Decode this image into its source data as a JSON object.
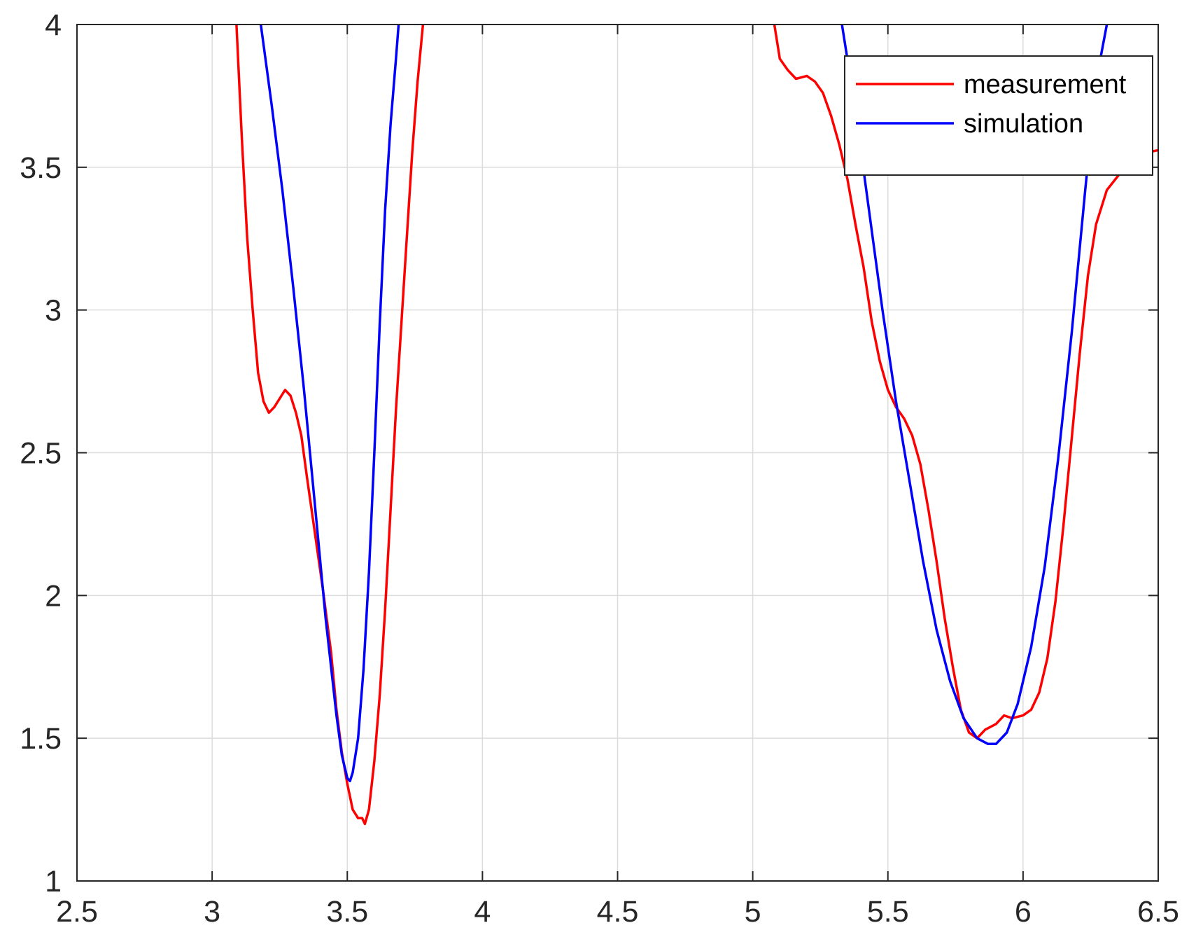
{
  "chart_data": {
    "type": "line",
    "title": "",
    "xlabel": "",
    "ylabel": "",
    "xlim": [
      2.5,
      6.5
    ],
    "ylim": [
      1,
      4
    ],
    "xticks": [
      2.5,
      3,
      3.5,
      4,
      4.5,
      5,
      5.5,
      6,
      6.5
    ],
    "xtick_labels": [
      "2.5",
      "3",
      "3.5",
      "4",
      "4.5",
      "5",
      "5.5",
      "6",
      "6.5"
    ],
    "yticks": [
      1,
      1.5,
      2,
      2.5,
      3,
      3.5,
      4
    ],
    "ytick_labels": [
      "1",
      "1.5",
      "2",
      "2.5",
      "3",
      "3.5",
      "4"
    ],
    "grid": true,
    "legend_position": "top-right",
    "series": [
      {
        "name": "measurement",
        "color": "#ff0000",
        "segments": [
          [
            [
              3.09,
              4.0
            ],
            [
              3.11,
              3.6
            ],
            [
              3.13,
              3.25
            ],
            [
              3.15,
              3.0
            ],
            [
              3.17,
              2.78
            ],
            [
              3.19,
              2.68
            ],
            [
              3.21,
              2.64
            ],
            [
              3.23,
              2.66
            ],
            [
              3.25,
              2.69
            ],
            [
              3.27,
              2.72
            ],
            [
              3.29,
              2.7
            ],
            [
              3.31,
              2.64
            ],
            [
              3.33,
              2.56
            ],
            [
              3.35,
              2.42
            ],
            [
              3.38,
              2.22
            ],
            [
              3.41,
              2.02
            ],
            [
              3.44,
              1.8
            ],
            [
              3.46,
              1.6
            ],
            [
              3.48,
              1.45
            ],
            [
              3.5,
              1.34
            ],
            [
              3.52,
              1.25
            ],
            [
              3.54,
              1.22
            ],
            [
              3.555,
              1.22
            ],
            [
              3.565,
              1.2
            ],
            [
              3.58,
              1.25
            ],
            [
              3.6,
              1.42
            ],
            [
              3.62,
              1.65
            ],
            [
              3.64,
              1.95
            ],
            [
              3.66,
              2.3
            ],
            [
              3.68,
              2.65
            ],
            [
              3.7,
              2.95
            ],
            [
              3.72,
              3.25
            ],
            [
              3.74,
              3.55
            ],
            [
              3.76,
              3.8
            ],
            [
              3.78,
              4.0
            ]
          ],
          [
            [
              5.08,
              4.0
            ],
            [
              5.1,
              3.88
            ],
            [
              5.13,
              3.84
            ],
            [
              5.16,
              3.81
            ],
            [
              5.2,
              3.82
            ],
            [
              5.23,
              3.8
            ],
            [
              5.26,
              3.76
            ],
            [
              5.29,
              3.68
            ],
            [
              5.32,
              3.58
            ],
            [
              5.35,
              3.46
            ],
            [
              5.38,
              3.3
            ],
            [
              5.41,
              3.15
            ],
            [
              5.44,
              2.96
            ],
            [
              5.47,
              2.82
            ],
            [
              5.5,
              2.72
            ],
            [
              5.53,
              2.66
            ],
            [
              5.56,
              2.62
            ],
            [
              5.59,
              2.56
            ],
            [
              5.62,
              2.46
            ],
            [
              5.65,
              2.3
            ],
            [
              5.68,
              2.12
            ],
            [
              5.71,
              1.92
            ],
            [
              5.74,
              1.75
            ],
            [
              5.77,
              1.6
            ],
            [
              5.8,
              1.52
            ],
            [
              5.83,
              1.5
            ],
            [
              5.86,
              1.53
            ],
            [
              5.9,
              1.55
            ],
            [
              5.93,
              1.58
            ],
            [
              5.96,
              1.57
            ],
            [
              6.0,
              1.58
            ],
            [
              6.03,
              1.6
            ],
            [
              6.06,
              1.66
            ],
            [
              6.09,
              1.78
            ],
            [
              6.12,
              1.98
            ],
            [
              6.15,
              2.25
            ],
            [
              6.18,
              2.55
            ],
            [
              6.21,
              2.85
            ],
            [
              6.24,
              3.12
            ],
            [
              6.27,
              3.3
            ],
            [
              6.31,
              3.42
            ],
            [
              6.36,
              3.48
            ],
            [
              6.4,
              3.52
            ],
            [
              6.45,
              3.55
            ],
            [
              6.5,
              3.56
            ]
          ]
        ]
      },
      {
        "name": "simulation",
        "color": "#0000ff",
        "segments": [
          [
            [
              3.18,
              4.0
            ],
            [
              3.22,
              3.72
            ],
            [
              3.26,
              3.42
            ],
            [
              3.3,
              3.08
            ],
            [
              3.34,
              2.72
            ],
            [
              3.38,
              2.32
            ],
            [
              3.42,
              1.92
            ],
            [
              3.46,
              1.58
            ],
            [
              3.48,
              1.44
            ],
            [
              3.5,
              1.36
            ],
            [
              3.51,
              1.35
            ],
            [
              3.52,
              1.38
            ],
            [
              3.54,
              1.5
            ],
            [
              3.56,
              1.74
            ],
            [
              3.58,
              2.08
            ],
            [
              3.6,
              2.5
            ],
            [
              3.62,
              2.95
            ],
            [
              3.64,
              3.35
            ],
            [
              3.66,
              3.65
            ],
            [
              3.68,
              3.88
            ],
            [
              3.69,
              4.0
            ]
          ],
          [
            [
              5.33,
              4.0
            ],
            [
              5.38,
              3.7
            ],
            [
              5.43,
              3.35
            ],
            [
              5.48,
              3.0
            ],
            [
              5.53,
              2.68
            ],
            [
              5.58,
              2.4
            ],
            [
              5.63,
              2.12
            ],
            [
              5.68,
              1.88
            ],
            [
              5.73,
              1.7
            ],
            [
              5.78,
              1.57
            ],
            [
              5.83,
              1.5
            ],
            [
              5.87,
              1.48
            ],
            [
              5.9,
              1.48
            ],
            [
              5.94,
              1.52
            ],
            [
              5.98,
              1.62
            ],
            [
              6.03,
              1.82
            ],
            [
              6.08,
              2.1
            ],
            [
              6.13,
              2.48
            ],
            [
              6.18,
              2.92
            ],
            [
              6.23,
              3.42
            ],
            [
              6.27,
              3.8
            ],
            [
              6.31,
              4.0
            ]
          ]
        ]
      }
    ]
  }
}
